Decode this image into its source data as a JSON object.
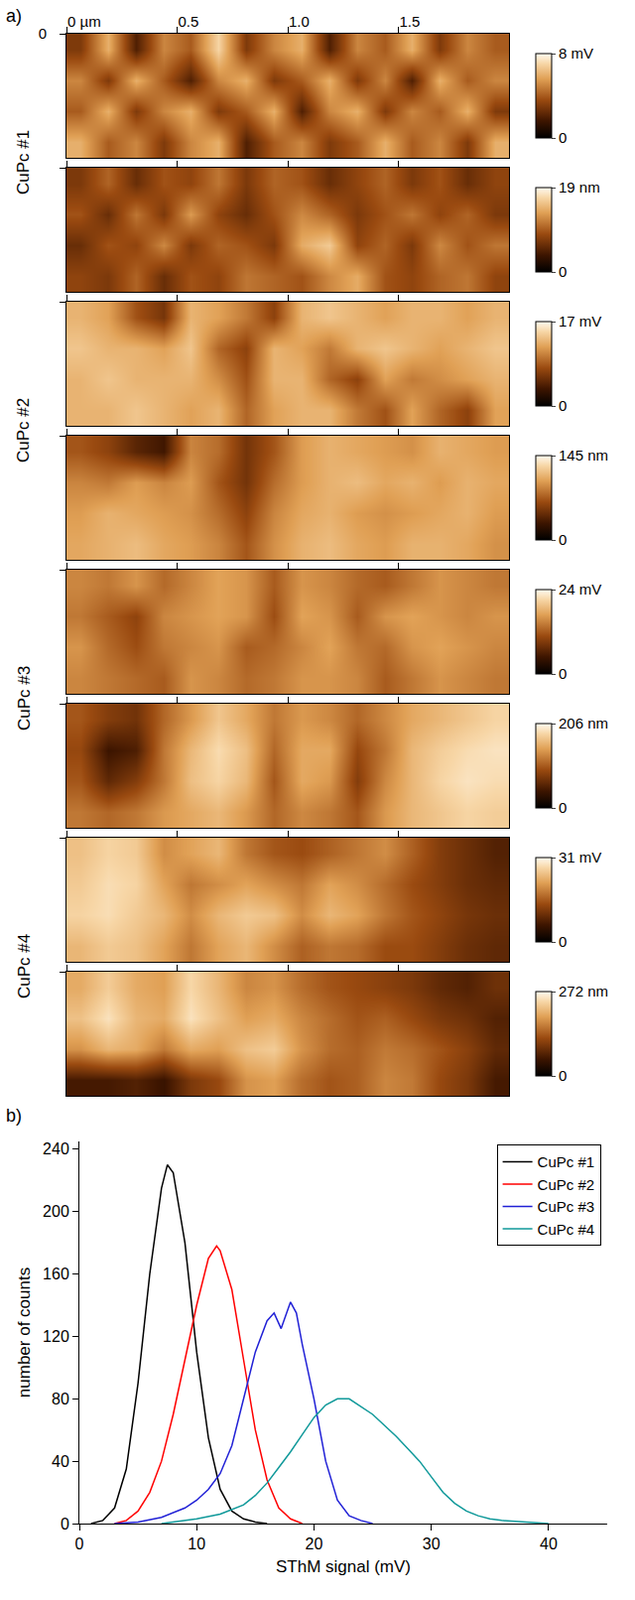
{
  "chart_data": [
    {
      "type": "heatmap",
      "panel": "a)",
      "xlim": [
        0,
        2
      ],
      "ylim": [
        0,
        0.55
      ],
      "xticks": [
        {
          "value": 0,
          "label": "0 µm"
        },
        0.5,
        {
          "value": 1,
          "label": "1.0"
        },
        1.5
      ],
      "yticks": [
        0
      ],
      "samples": [
        {
          "name": "CuPc #1",
          "maps": [
            {
              "zlim": [
                0,
                8
              ],
              "zticks": [
                0,
                {
                  "value": 8,
                  "label": "8 mV"
                }
              ],
              "cells": [
                [
                  3,
                  6,
                  2,
                  5,
                  4,
                  7,
                  3,
                  5,
                  6,
                  2,
                  5,
                  4,
                  6,
                  3,
                  5,
                  4
                ],
                [
                  5,
                  3,
                  6,
                  4,
                  2,
                  5,
                  6,
                  3,
                  4,
                  6,
                  3,
                  5,
                  2,
                  6,
                  4,
                  5
                ],
                [
                  4,
                  6,
                  3,
                  5,
                  6,
                  3,
                  4,
                  6,
                  2,
                  5,
                  6,
                  3,
                  5,
                  4,
                  6,
                  3
                ],
                [
                  6,
                  4,
                  5,
                  3,
                  5,
                  6,
                  2,
                  4,
                  5,
                  3,
                  4,
                  6,
                  4,
                  5,
                  3,
                  6
                ]
              ]
            },
            {
              "zlim": [
                0,
                19
              ],
              "zticks": [
                0,
                {
                  "value": 19,
                  "label": "19 nm"
                }
              ],
              "tick_labels": false,
              "cells": [
                [
                  7,
                  10,
                  6,
                  9,
                  8,
                  11,
                  7,
                  10,
                  9,
                  6,
                  8,
                  10,
                  7,
                  9,
                  6,
                  8
                ],
                [
                  9,
                  6,
                  11,
                  7,
                  13,
                  8,
                  6,
                  9,
                  12,
                  10,
                  7,
                  9,
                  11,
                  8,
                  10,
                  7
                ],
                [
                  6,
                  9,
                  8,
                  12,
                  7,
                  10,
                  9,
                  7,
                  14,
                  16,
                  8,
                  10,
                  7,
                  12,
                  9,
                  11
                ],
                [
                  8,
                  7,
                  10,
                  6,
                  9,
                  8,
                  11,
                  10,
                  9,
                  12,
                  14,
                  9,
                  8,
                  10,
                  11,
                  8
                ]
              ]
            }
          ]
        },
        {
          "name": "CuPc #2",
          "maps": [
            {
              "zlim": [
                0,
                17
              ],
              "zticks": [
                0,
                {
                  "value": 17,
                  "label": "17 mV"
                }
              ],
              "tick_labels": false,
              "cells": [
                [
                  13,
                  12,
                  8,
                  6,
                  13,
                  12,
                  10,
                  7,
                  13,
                  14,
                  13,
                  12,
                  13,
                  13,
                  12,
                  13
                ],
                [
                  14,
                  13,
                  13,
                  12,
                  14,
                  9,
                  7,
                  13,
                  12,
                  10,
                  13,
                  14,
                  13,
                  12,
                  13,
                  14
                ],
                [
                  13,
                  14,
                  13,
                  13,
                  13,
                  11,
                  8,
                  13,
                  13,
                  9,
                  7,
                  12,
                  10,
                  11,
                  12,
                  13
                ],
                [
                  13,
                  13,
                  14,
                  13,
                  12,
                  13,
                  9,
                  12,
                  13,
                  13,
                  10,
                  8,
                  12,
                  9,
                  7,
                  12
                ]
              ]
            },
            {
              "zlim": [
                0,
                145
              ],
              "zticks": [
                0,
                {
                  "value": 145,
                  "label": "145 nm"
                }
              ],
              "tick_labels": false,
              "cells": [
                [
                  70,
                  60,
                  40,
                  30,
                  90,
                  80,
                  50,
                  70,
                  100,
                  110,
                  105,
                  100,
                  95,
                  110,
                  105,
                  100
                ],
                [
                  90,
                  85,
                  100,
                  90,
                  100,
                  70,
                  50,
                  80,
                  100,
                  110,
                  115,
                  105,
                  110,
                  100,
                  110,
                  105
                ],
                [
                  100,
                  110,
                  105,
                  100,
                  95,
                  80,
                  60,
                  90,
                  105,
                  110,
                  100,
                  95,
                  100,
                  105,
                  110,
                  100
                ],
                [
                  105,
                  110,
                  115,
                  105,
                  100,
                  90,
                  70,
                  95,
                  110,
                  115,
                  105,
                  100,
                  110,
                  110,
                  105,
                  95
                ]
              ]
            }
          ]
        },
        {
          "name": "CuPc #3",
          "maps": [
            {
              "zlim": [
                0,
                24
              ],
              "zticks": [
                0,
                {
                  "value": 24,
                  "label": "24 mV"
                }
              ],
              "tick_labels": false,
              "cells": [
                [
                  15,
                  14,
                  16,
                  13,
                  15,
                  17,
                  16,
                  12,
                  16,
                  15,
                  13,
                  12,
                  14,
                  16,
                  15,
                  14
                ],
                [
                  14,
                  12,
                  10,
                  15,
                  16,
                  17,
                  16,
                  11,
                  17,
                  16,
                  12,
                  16,
                  17,
                  16,
                  15,
                  16
                ],
                [
                  16,
                  13,
                  11,
                  14,
                  15,
                  16,
                  12,
                  13,
                  15,
                  17,
                  14,
                  13,
                  16,
                  17,
                  16,
                  15
                ],
                [
                  15,
                  14,
                  13,
                  12,
                  16,
                  15,
                  13,
                  14,
                  16,
                  16,
                  15,
                  12,
                  14,
                  16,
                  15,
                  14
                ]
              ]
            },
            {
              "zlim": [
                0,
                206
              ],
              "zticks": [
                0,
                {
                  "value": 206,
                  "label": "206 nm"
                }
              ],
              "tick_labels": false,
              "cells": [
                [
                  100,
                  80,
                  70,
                  110,
                  140,
                  170,
                  150,
                  120,
                  140,
                  130,
                  110,
                  130,
                  150,
                  160,
                  170,
                  180
                ],
                [
                  90,
                  40,
                  50,
                  120,
                  160,
                  185,
                  165,
                  110,
                  150,
                  150,
                  90,
                  120,
                  160,
                  175,
                  185,
                  190
                ],
                [
                  100,
                  60,
                  80,
                  120,
                  165,
                  180,
                  160,
                  100,
                  150,
                  140,
                  80,
                  130,
                  160,
                  180,
                  190,
                  185
                ],
                [
                  120,
                  110,
                  120,
                  140,
                  150,
                  160,
                  140,
                  110,
                  130,
                  120,
                  100,
                  140,
                  160,
                  170,
                  180,
                  175
                ]
              ]
            }
          ]
        },
        {
          "name": "CuPc #4",
          "maps": [
            {
              "zlim": [
                0,
                31
              ],
              "zticks": [
                0,
                {
                  "value": 31,
                  "label": "31 mV"
                }
              ],
              "tick_labels": false,
              "cells": [
                [
                  25,
                  27,
                  26,
                  20,
                  22,
                  24,
                  18,
                  15,
                  14,
                  16,
                  18,
                  20,
                  16,
                  12,
                  10,
                  8
                ],
                [
                  26,
                  28,
                  27,
                  22,
                  18,
                  20,
                  22,
                  20,
                  18,
                  22,
                  20,
                  17,
                  14,
                  12,
                  10,
                  9
                ],
                [
                  27,
                  28,
                  26,
                  24,
                  20,
                  24,
                  26,
                  25,
                  20,
                  24,
                  22,
                  18,
                  15,
                  13,
                  11,
                  10
                ],
                [
                  24,
                  26,
                  25,
                  22,
                  18,
                  22,
                  24,
                  20,
                  16,
                  18,
                  17,
                  14,
                  14,
                  12,
                  10,
                  9
                ]
              ]
            },
            {
              "zlim": [
                0,
                272
              ],
              "zticks": [
                0,
                {
                  "value": 272,
                  "label": "272 nm"
                }
              ],
              "tick_labels": false,
              "cells": [
                [
                  200,
                  230,
                  200,
                  190,
                  240,
                  210,
                  170,
                  180,
                  150,
                  130,
                  120,
                  110,
                  100,
                  80,
                  70,
                  90
                ],
                [
                  220,
                  250,
                  210,
                  200,
                  250,
                  220,
                  190,
                  200,
                  170,
                  150,
                  130,
                  140,
                  120,
                  100,
                  90,
                  70
                ],
                [
                  180,
                  210,
                  200,
                  160,
                  200,
                  190,
                  220,
                  230,
                  180,
                  150,
                  140,
                  160,
                  150,
                  130,
                  110,
                  80
                ],
                [
                  60,
                  60,
                  70,
                  50,
                  100,
                  120,
                  180,
                  190,
                  150,
                  130,
                  140,
                  170,
                  160,
                  120,
                  100,
                  60
                ]
              ]
            }
          ]
        }
      ]
    },
    {
      "type": "line",
      "panel": "b)",
      "xlabel": "SThM signal (mV)",
      "ylabel": "number of counts",
      "xlim": [
        0,
        45
      ],
      "ylim": [
        0,
        245
      ],
      "xticks": [
        0,
        10,
        20,
        30,
        40
      ],
      "yticks": [
        0,
        40,
        80,
        120,
        160,
        200,
        240
      ],
      "grid": false,
      "legend": "top right",
      "series": [
        {
          "name": "CuPc #1",
          "color": "#000000",
          "x": [
            1,
            2,
            3,
            4,
            5,
            6,
            7,
            7.5,
            8,
            9,
            10,
            11,
            12,
            13,
            14,
            15,
            16
          ],
          "values": [
            0,
            2,
            10,
            35,
            90,
            160,
            215,
            230,
            225,
            180,
            110,
            55,
            22,
            8,
            3,
            1,
            0
          ]
        },
        {
          "name": "CuPc #2",
          "color": "#ff0000",
          "x": [
            3,
            4,
            5,
            6,
            7,
            8,
            9,
            10,
            11,
            11.7,
            12,
            13,
            14,
            15,
            16,
            17,
            18,
            19
          ],
          "values": [
            0,
            2,
            8,
            20,
            40,
            70,
            105,
            140,
            170,
            178,
            175,
            150,
            105,
            60,
            28,
            10,
            3,
            0
          ]
        },
        {
          "name": "CuPc #3",
          "color": "#2121d6",
          "x": [
            3,
            5,
            7,
            9,
            10,
            11,
            12,
            13,
            14,
            15,
            16,
            16.6,
            17.2,
            18,
            18.5,
            19,
            20,
            21,
            22,
            23,
            24,
            25
          ],
          "values": [
            0,
            1,
            4,
            10,
            15,
            22,
            32,
            50,
            80,
            110,
            130,
            135,
            125,
            142,
            135,
            115,
            80,
            40,
            15,
            5,
            2,
            0
          ]
        },
        {
          "name": "CuPc #4",
          "color": "#10999a",
          "x": [
            7,
            10,
            12,
            14,
            15,
            16,
            17,
            18,
            19,
            20,
            21,
            22,
            23,
            24,
            25,
            26,
            27,
            28,
            29,
            30,
            31,
            32,
            33,
            34,
            35,
            36,
            38,
            40
          ],
          "values": [
            0,
            3,
            6,
            12,
            18,
            26,
            36,
            46,
            57,
            68,
            76,
            80,
            80,
            75,
            70,
            63,
            56,
            48,
            40,
            30,
            20,
            13,
            8,
            5,
            3,
            2,
            1,
            0
          ]
        }
      ]
    }
  ]
}
